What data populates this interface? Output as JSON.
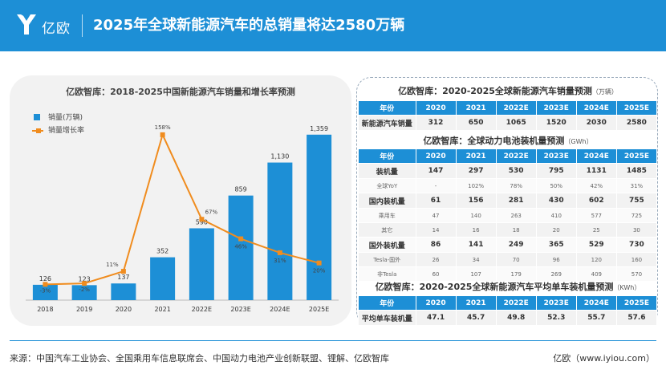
{
  "header": {
    "brand": "亿欧",
    "title": "2025年全球新能源汽车的总销量将达2580万辆"
  },
  "colors": {
    "brand_blue": "#1d8fd6",
    "line_orange": "#f08c1e"
  },
  "chart_data": {
    "type": "bar",
    "title": "亿欧智库：2018-2025中国新能源汽车销量和增长率预测",
    "categories": [
      "2018",
      "2019",
      "2020",
      "2021",
      "2022E",
      "2023E",
      "2024E",
      "2025E"
    ],
    "series": [
      {
        "name": "销量(万辆)",
        "type": "bar",
        "values": [
          126,
          123,
          137,
          352,
          590,
          859,
          1130,
          1359
        ],
        "labels": [
          "126",
          "123",
          "137",
          "352",
          "590",
          "859",
          "1,130",
          "1,359"
        ]
      },
      {
        "name": "销量增长率",
        "type": "line",
        "values": [
          -3,
          -2,
          11,
          158,
          67,
          46,
          31,
          20
        ],
        "labels": [
          "-3%",
          "-2%",
          "11%",
          "158%",
          "67%",
          "46%",
          "31%",
          "20%"
        ]
      }
    ],
    "ylim": [
      0,
      1450
    ],
    "y2lim": [
      -20,
      170
    ],
    "grid": false,
    "legend": "top-left"
  },
  "tables": [
    {
      "title": "亿欧智库：2020-2025全球新能源汽车销量预测",
      "unit": "（万辆）",
      "header": [
        "年份",
        "2020",
        "2021",
        "2022E",
        "2023E",
        "2024E",
        "2025E"
      ],
      "rows": [
        {
          "style": "bold",
          "cells": [
            "新能源汽车销量",
            "312",
            "650",
            "1065",
            "1520",
            "2030",
            "2580"
          ]
        }
      ]
    },
    {
      "title": "亿欧智库：全球动力电池装机量预测",
      "unit": "（GWh）",
      "header": [
        "年份",
        "2020",
        "2021",
        "2022E",
        "2023E",
        "2024E",
        "2025E"
      ],
      "rows": [
        {
          "style": "bold",
          "cells": [
            "装机量",
            "147",
            "297",
            "530",
            "795",
            "1131",
            "1485"
          ]
        },
        {
          "style": "sub",
          "cells": [
            "全球YoY",
            "-",
            "102%",
            "78%",
            "50%",
            "42%",
            "31%"
          ]
        },
        {
          "style": "bold",
          "cells": [
            "国内装机量",
            "61",
            "156",
            "281",
            "430",
            "602",
            "755"
          ]
        },
        {
          "style": "sub",
          "cells": [
            "乘用车",
            "47",
            "140",
            "263",
            "410",
            "577",
            "725"
          ]
        },
        {
          "style": "sub",
          "cells": [
            "其它",
            "14",
            "16",
            "18",
            "20",
            "25",
            "30"
          ]
        },
        {
          "style": "bold",
          "cells": [
            "国外装机量",
            "86",
            "141",
            "249",
            "365",
            "529",
            "730"
          ]
        },
        {
          "style": "sub",
          "cells": [
            "Tesla-国外",
            "26",
            "34",
            "70",
            "96",
            "120",
            "160"
          ]
        },
        {
          "style": "sub",
          "cells": [
            "非Tesla",
            "60",
            "107",
            "179",
            "269",
            "409",
            "570"
          ]
        }
      ]
    },
    {
      "title": "亿欧智库：2020-2025全球新能源汽车平均单车装机量预测",
      "unit": "（KWh）",
      "header": [
        "年份",
        "2020",
        "2021",
        "2022E",
        "2023E",
        "2024E",
        "2025E"
      ],
      "rows": [
        {
          "style": "bold",
          "cells": [
            "平均单车装机量",
            "47.1",
            "45.7",
            "49.8",
            "52.3",
            "55.7",
            "57.6"
          ]
        }
      ]
    }
  ],
  "footer": {
    "source": "来源：中国汽车工业协会、全国乘用车信息联席会、中国动力电池产业创新联盟、锂解、亿欧智库",
    "site": "亿欧（www.iyiou.com）"
  }
}
